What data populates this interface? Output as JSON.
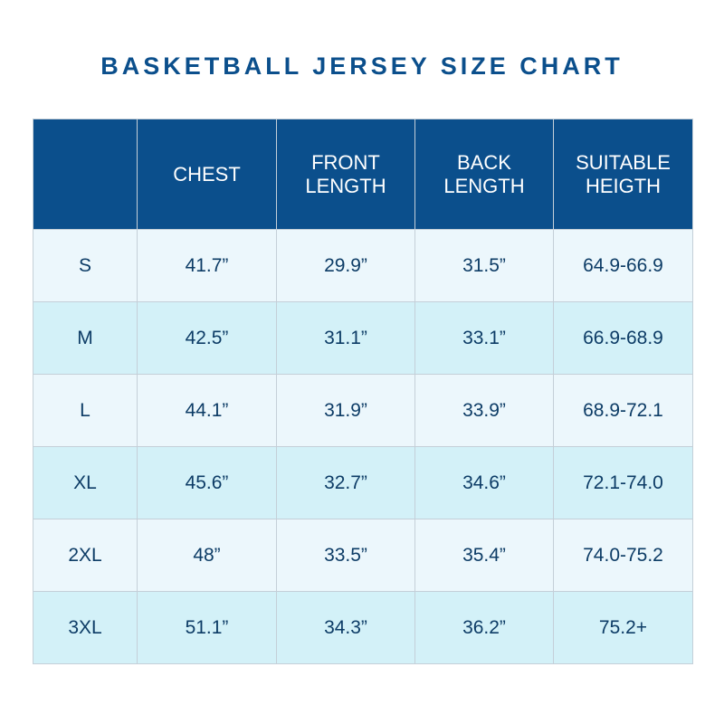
{
  "header": {
    "title": "BASKETBALL JERSEY SIZE CHART"
  },
  "table": {
    "columns": [
      "",
      "CHEST",
      "FRONT\nLENGTH",
      "BACK\nLENGTH",
      "SUITABLE\nHEIGTH"
    ],
    "rows": [
      [
        "S",
        "41.7”",
        "29.9”",
        "31.5”",
        "64.9-66.9"
      ],
      [
        "M",
        "42.5”",
        "31.1”",
        "33.1”",
        "66.9-68.9"
      ],
      [
        "L",
        "44.1”",
        "31.9”",
        "33.9”",
        "68.9-72.1"
      ],
      [
        "XL",
        "45.6”",
        "32.7”",
        "34.6”",
        "72.1-74.0"
      ],
      [
        "2XL",
        "48”",
        "33.5”",
        "35.4”",
        "74.0-75.2"
      ],
      [
        "3XL",
        "51.1”",
        "34.3”",
        "36.2”",
        "75.2+"
      ]
    ]
  }
}
